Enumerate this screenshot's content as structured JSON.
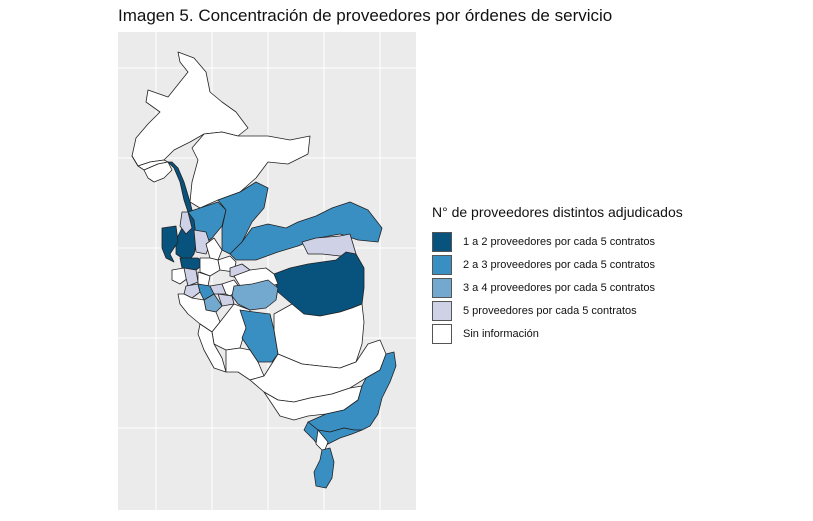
{
  "figure": {
    "title": "Imagen 5. Concentración de proveedores por órdenes de servicio"
  },
  "legend": {
    "title": "N° de proveedores distintos adjudicados",
    "items": [
      {
        "key": "c1",
        "label": "1 a 2 proveedores por cada 5 contratos",
        "color": "#08527e"
      },
      {
        "key": "c2",
        "label": "2 a 3 proveedores por cada 5 contratos",
        "color": "#3a8fc2"
      },
      {
        "key": "c3",
        "label": "3 a 4 proveedores por cada 5 contratos",
        "color": "#74a9cf"
      },
      {
        "key": "c4",
        "label": "5 proveedores por cada 5 contratos",
        "color": "#cfd1e6"
      },
      {
        "key": "c5",
        "label": "Sin información",
        "color": "#ffffff"
      }
    ]
  },
  "map": {
    "border_color": "#222222",
    "panel_color": "#ebebeb",
    "grid_color": "#ffffff"
  }
}
